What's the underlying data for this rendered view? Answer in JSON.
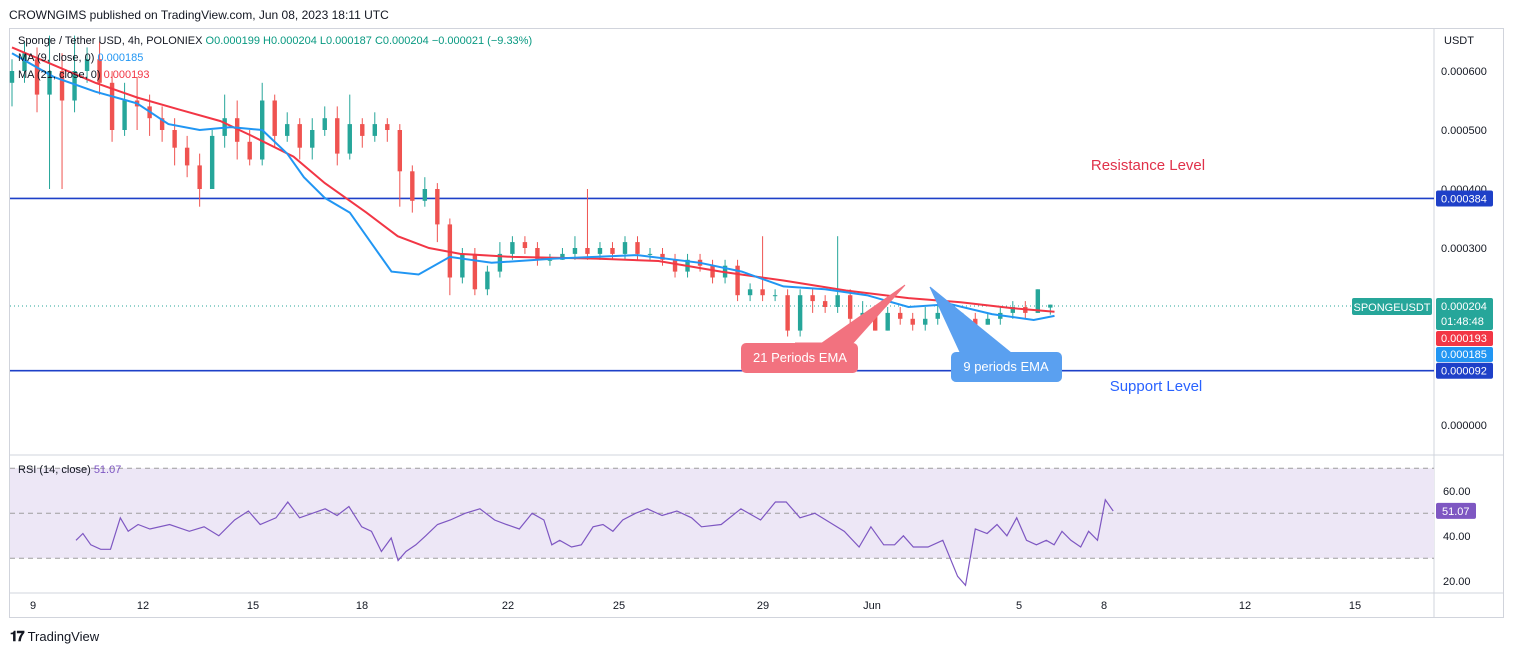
{
  "header": {
    "text": "CROWNGIMS published on TradingView.com, Jun 08, 2023 18:11 UTC"
  },
  "legend": {
    "symbol": "Sponge / Tether USD, 4h, POLONIEX",
    "ohlc": "O0.000199  H0.000204  L0.000187  C0.000204  −0.000021 (−9.33%)",
    "ma9_label": "MA (9, close, 0)",
    "ma9_value": "0.000185",
    "ma21_label": "MA (21, close, 0)",
    "ma21_value": "0.000193",
    "rsi_label": "RSI (14, close)",
    "rsi_value": "51.07"
  },
  "footer": {
    "brand": "TradingView"
  },
  "colors": {
    "up": "#26a69a",
    "down": "#ef5350",
    "ema9": "#2196f3",
    "ema21": "#f23645",
    "level_line": "#1e40c8",
    "rsi": "#7e57c2",
    "rsi_band": "#ede7f6",
    "price_tag": "#26a69a"
  },
  "chart_data": {
    "type": "candlestick",
    "title": "",
    "price_axis": {
      "unit": "USDT",
      "ticks": [
        "0.000600",
        "0.000500",
        "0.000400",
        "0.000300",
        "0.000000"
      ],
      "tick_values": [
        0.0006,
        0.0005,
        0.0004,
        0.0003,
        0.0
      ]
    },
    "time_axis": {
      "ticks": [
        "9",
        "12",
        "15",
        "18",
        "22",
        "25",
        "29",
        "Jun",
        "5",
        "8",
        "12",
        "15"
      ]
    },
    "levels": [
      {
        "label": "Resistance Level",
        "value": 0.000384,
        "tag": "0.000384"
      },
      {
        "label": "Support Level",
        "value": 9.2e-05,
        "tag": "0.000092"
      }
    ],
    "price_tags": {
      "symbol": "SPONGEUSDT",
      "last": "0.000204",
      "countdown": "01:48:48",
      "ema21": "0.000193",
      "ema9": "0.000185"
    },
    "annotations": [
      {
        "label": "21 Periods EMA"
      },
      {
        "label": "9 periods EMA"
      }
    ],
    "ema21_curve": [
      [
        0,
        0.00064
      ],
      [
        20,
        0.00061
      ],
      [
        40,
        0.00058
      ],
      [
        60,
        0.000555
      ],
      [
        80,
        0.000535
      ],
      [
        100,
        0.000515
      ],
      [
        115,
        0.00049
      ],
      [
        135,
        0.000455
      ],
      [
        150,
        0.00041
      ],
      [
        170,
        0.00036
      ],
      [
        185,
        0.00032
      ],
      [
        200,
        0.0003
      ],
      [
        215,
        0.00029
      ],
      [
        240,
        0.000285
      ],
      [
        280,
        0.000282
      ],
      [
        310,
        0.000278
      ],
      [
        340,
        0.00026
      ],
      [
        370,
        0.000245
      ],
      [
        400,
        0.000228
      ],
      [
        430,
        0.000215
      ],
      [
        455,
        0.000208
      ],
      [
        480,
        0.000198
      ],
      [
        500,
        0.000192
      ]
    ],
    "ema9_curve": [
      [
        0,
        0.00063
      ],
      [
        20,
        0.00059
      ],
      [
        40,
        0.000565
      ],
      [
        60,
        0.000545
      ],
      [
        75,
        0.00051
      ],
      [
        90,
        0.0005
      ],
      [
        105,
        0.000505
      ],
      [
        120,
        0.0005
      ],
      [
        132,
        0.00046
      ],
      [
        140,
        0.00042
      ],
      [
        150,
        0.000385
      ],
      [
        162,
        0.00036
      ],
      [
        172,
        0.00031
      ],
      [
        182,
        0.00026
      ],
      [
        195,
        0.000255
      ],
      [
        210,
        0.000285
      ],
      [
        230,
        0.000275
      ],
      [
        260,
        0.000282
      ],
      [
        300,
        0.000288
      ],
      [
        330,
        0.000275
      ],
      [
        350,
        0.00026
      ],
      [
        370,
        0.000235
      ],
      [
        390,
        0.00023
      ],
      [
        410,
        0.00022
      ],
      [
        430,
        0.0002
      ],
      [
        450,
        0.000205
      ],
      [
        470,
        0.000188
      ],
      [
        490,
        0.000178
      ],
      [
        500,
        0.000185
      ]
    ],
    "candles": [
      [
        0,
        0.00058,
        0.0006,
        0.00062,
        0.00054
      ],
      [
        6,
        0.0006,
        0.00063,
        0.00065,
        0.00058
      ],
      [
        12,
        0.00062,
        0.00056,
        0.00064,
        0.00053
      ],
      [
        18,
        0.00056,
        0.0006,
        0.00066,
        0.0004
      ],
      [
        24,
        0.0006,
        0.00055,
        0.00063,
        0.0004
      ],
      [
        30,
        0.00055,
        0.0006,
        0.00066,
        0.00053
      ],
      [
        36,
        0.0006,
        0.00062,
        0.00064,
        0.00058
      ],
      [
        42,
        0.00062,
        0.00058,
        0.00065,
        0.00056
      ],
      [
        48,
        0.00058,
        0.0005,
        0.0006,
        0.00048
      ],
      [
        54,
        0.0005,
        0.00055,
        0.00058,
        0.00049
      ],
      [
        60,
        0.00055,
        0.00054,
        0.00059,
        0.0005
      ],
      [
        66,
        0.00054,
        0.00052,
        0.00056,
        0.00049
      ],
      [
        72,
        0.00052,
        0.0005,
        0.00054,
        0.00048
      ],
      [
        78,
        0.0005,
        0.00047,
        0.00052,
        0.00044
      ],
      [
        84,
        0.00047,
        0.00044,
        0.00049,
        0.00042
      ],
      [
        90,
        0.00044,
        0.0004,
        0.00046,
        0.00037
      ],
      [
        96,
        0.0004,
        0.00049,
        0.0005,
        0.0004
      ],
      [
        102,
        0.00049,
        0.00052,
        0.00056,
        0.00047
      ],
      [
        108,
        0.00052,
        0.00048,
        0.00055,
        0.00045
      ],
      [
        114,
        0.00048,
        0.00045,
        0.0005,
        0.00044
      ],
      [
        120,
        0.00045,
        0.00055,
        0.00058,
        0.00044
      ],
      [
        126,
        0.00055,
        0.00049,
        0.00056,
        0.00047
      ],
      [
        132,
        0.00049,
        0.00051,
        0.00053,
        0.00048
      ],
      [
        138,
        0.00051,
        0.00047,
        0.00052,
        0.00045
      ],
      [
        144,
        0.00047,
        0.0005,
        0.00052,
        0.00045
      ],
      [
        150,
        0.0005,
        0.00052,
        0.00054,
        0.00049
      ],
      [
        156,
        0.00052,
        0.00046,
        0.00054,
        0.00044
      ],
      [
        162,
        0.00046,
        0.00051,
        0.00056,
        0.00045
      ],
      [
        168,
        0.00051,
        0.00049,
        0.00052,
        0.00047
      ],
      [
        174,
        0.00049,
        0.00051,
        0.00053,
        0.00048
      ],
      [
        180,
        0.00051,
        0.0005,
        0.00052,
        0.00048
      ],
      [
        186,
        0.0005,
        0.00043,
        0.00051,
        0.00037
      ],
      [
        192,
        0.00043,
        0.00038,
        0.00044,
        0.00036
      ],
      [
        198,
        0.00038,
        0.0004,
        0.00042,
        0.00037
      ],
      [
        204,
        0.0004,
        0.00034,
        0.00041,
        0.00031
      ],
      [
        210,
        0.00034,
        0.00025,
        0.00035,
        0.00022
      ],
      [
        216,
        0.00025,
        0.00029,
        0.0003,
        0.00024
      ],
      [
        222,
        0.00029,
        0.00023,
        0.0003,
        0.00022
      ],
      [
        228,
        0.00023,
        0.00026,
        0.00027,
        0.00022
      ],
      [
        234,
        0.00026,
        0.00029,
        0.00031,
        0.00025
      ],
      [
        240,
        0.00029,
        0.00031,
        0.00032,
        0.00028
      ],
      [
        246,
        0.00031,
        0.0003,
        0.00032,
        0.00029
      ],
      [
        252,
        0.0003,
        0.00028,
        0.00031,
        0.00027
      ],
      [
        258,
        0.00028,
        0.00028,
        0.00029,
        0.00027
      ],
      [
        264,
        0.00028,
        0.00029,
        0.0003,
        0.00028
      ],
      [
        270,
        0.00029,
        0.0003,
        0.00032,
        0.00028
      ],
      [
        276,
        0.0003,
        0.00029,
        0.0004,
        0.00028
      ],
      [
        282,
        0.00029,
        0.0003,
        0.00031,
        0.00028
      ],
      [
        288,
        0.0003,
        0.00029,
        0.00031,
        0.00028
      ],
      [
        294,
        0.00029,
        0.00031,
        0.00032,
        0.00028
      ],
      [
        300,
        0.00031,
        0.00029,
        0.00032,
        0.00028
      ],
      [
        306,
        0.00029,
        0.00029,
        0.0003,
        0.00028
      ],
      [
        312,
        0.00029,
        0.00028,
        0.0003,
        0.00027
      ],
      [
        318,
        0.00028,
        0.00026,
        0.00029,
        0.00025
      ],
      [
        324,
        0.00026,
        0.00028,
        0.00029,
        0.00025
      ],
      [
        330,
        0.00028,
        0.00027,
        0.00029,
        0.00026
      ],
      [
        336,
        0.00027,
        0.00025,
        0.00028,
        0.00024
      ],
      [
        342,
        0.00025,
        0.00027,
        0.00028,
        0.00024
      ],
      [
        348,
        0.00027,
        0.00022,
        0.00028,
        0.00021
      ],
      [
        354,
        0.00022,
        0.00023,
        0.00024,
        0.00021
      ],
      [
        360,
        0.00023,
        0.00022,
        0.00032,
        0.00021
      ],
      [
        366,
        0.00022,
        0.00022,
        0.00023,
        0.00021
      ],
      [
        372,
        0.00022,
        0.00016,
        0.00023,
        0.00015
      ],
      [
        378,
        0.00016,
        0.00022,
        0.00023,
        0.00015
      ],
      [
        384,
        0.00022,
        0.00021,
        0.00023,
        0.00019
      ],
      [
        390,
        0.00021,
        0.0002,
        0.00022,
        0.00019
      ],
      [
        396,
        0.0002,
        0.00022,
        0.00032,
        0.00019
      ],
      [
        402,
        0.00022,
        0.00018,
        0.00023,
        0.00017
      ],
      [
        408,
        0.00018,
        0.00019,
        0.00021,
        0.00017
      ],
      [
        414,
        0.00019,
        0.00016,
        0.0002,
        0.00016
      ],
      [
        420,
        0.00016,
        0.00019,
        0.0002,
        0.00016
      ],
      [
        426,
        0.00019,
        0.00018,
        0.0002,
        0.00017
      ],
      [
        432,
        0.00018,
        0.00017,
        0.00019,
        0.00016
      ],
      [
        438,
        0.00017,
        0.00018,
        0.0002,
        0.00016
      ],
      [
        444,
        0.00018,
        0.00019,
        0.00021,
        0.00017
      ],
      [
        450,
        0.00019,
        0.00017,
        0.0002,
        0.00016
      ],
      [
        456,
        0.00017,
        0.00018,
        0.00019,
        0.00016
      ],
      [
        462,
        0.00018,
        0.00017,
        0.00019,
        0.00016
      ],
      [
        468,
        0.00017,
        0.00018,
        0.00019,
        0.00017
      ],
      [
        474,
        0.00018,
        0.00019,
        0.0002,
        0.00017
      ],
      [
        480,
        0.00019,
        0.0002,
        0.00021,
        0.00018
      ],
      [
        486,
        0.0002,
        0.00019,
        0.00021,
        0.00018
      ],
      [
        492,
        0.00019,
        0.00023,
        0.00023,
        0.00019
      ],
      [
        498,
        0.000199,
        0.000204,
        0.000204,
        0.000187
      ]
    ],
    "rsi": {
      "label": "RSI (14, close)",
      "last": "51.07",
      "ticks": [
        "60.00",
        "40.00",
        "20.00"
      ],
      "tick_values": [
        60,
        40,
        20
      ],
      "band": [
        30,
        70
      ],
      "mid": 50,
      "ylim": [
        15,
        75
      ],
      "values": [
        [
          65,
          38
        ],
        [
          72,
          41
        ],
        [
          80,
          36
        ],
        [
          90,
          34
        ],
        [
          100,
          34
        ],
        [
          110,
          48
        ],
        [
          118,
          42
        ],
        [
          128,
          45
        ],
        [
          140,
          43
        ],
        [
          160,
          45
        ],
        [
          180,
          42
        ],
        [
          195,
          44
        ],
        [
          210,
          40
        ],
        [
          226,
          47
        ],
        [
          240,
          51
        ],
        [
          252,
          45
        ],
        [
          268,
          48
        ],
        [
          280,
          55
        ],
        [
          292,
          48
        ],
        [
          305,
          50
        ],
        [
          318,
          52
        ],
        [
          330,
          49
        ],
        [
          342,
          53
        ],
        [
          355,
          44
        ],
        [
          365,
          42
        ],
        [
          375,
          33
        ],
        [
          385,
          39
        ],
        [
          392,
          29
        ],
        [
          400,
          33
        ],
        [
          410,
          36
        ],
        [
          420,
          40
        ],
        [
          432,
          45
        ],
        [
          445,
          47
        ],
        [
          460,
          50
        ],
        [
          475,
          52
        ],
        [
          490,
          47
        ],
        [
          502,
          45
        ],
        [
          515,
          43
        ],
        [
          528,
          50
        ],
        [
          540,
          47
        ],
        [
          548,
          36
        ],
        [
          556,
          38
        ],
        [
          568,
          35
        ],
        [
          578,
          36
        ],
        [
          590,
          44
        ],
        [
          600,
          45
        ],
        [
          610,
          42
        ],
        [
          620,
          47
        ],
        [
          633,
          50
        ],
        [
          645,
          52
        ],
        [
          660,
          49
        ],
        [
          675,
          51
        ],
        [
          690,
          48
        ],
        [
          700,
          44
        ],
        [
          720,
          45
        ],
        [
          740,
          52
        ],
        [
          760,
          47
        ],
        [
          775,
          55
        ],
        [
          786,
          55
        ],
        [
          800,
          48
        ],
        [
          815,
          50
        ],
        [
          830,
          46
        ],
        [
          845,
          42
        ],
        [
          860,
          35
        ],
        [
          872,
          44
        ],
        [
          885,
          36
        ],
        [
          896,
          36
        ],
        [
          905,
          40
        ],
        [
          915,
          35
        ],
        [
          930,
          35
        ],
        [
          945,
          38
        ],
        [
          960,
          22
        ],
        [
          968,
          18
        ],
        [
          978,
          43
        ],
        [
          990,
          41
        ],
        [
          1000,
          45
        ],
        [
          1010,
          40
        ],
        [
          1020,
          48
        ],
        [
          1030,
          38
        ],
        [
          1040,
          36
        ],
        [
          1050,
          38
        ],
        [
          1058,
          36
        ],
        [
          1066,
          42
        ],
        [
          1075,
          38
        ],
        [
          1085,
          35
        ],
        [
          1093,
          42
        ],
        [
          1102,
          38
        ],
        [
          1110,
          56
        ],
        [
          1118,
          51
        ]
      ]
    }
  }
}
